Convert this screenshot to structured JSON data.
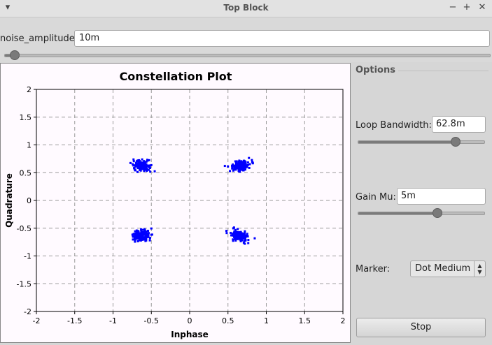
{
  "window": {
    "title": "Top Block",
    "menu_icon": "chevron-down-icon",
    "controls": [
      "minimize-icon",
      "maximize-icon",
      "close-icon"
    ]
  },
  "noise": {
    "label": "noise_amplitude:",
    "value": "10m",
    "slider_fraction": 0.02
  },
  "plot": {
    "title": "Constellation Plot",
    "xlabel": "Inphase",
    "ylabel": "Quadrature"
  },
  "options": {
    "title": "Options",
    "loop_bandwidth": {
      "label": "Loop Bandwidth:",
      "value": "62.8m",
      "slider_fraction": 0.77
    },
    "gain_mu": {
      "label": "Gain Mu:",
      "value": "5m",
      "slider_fraction": 0.63
    },
    "marker": {
      "label": "Marker:",
      "value": "Dot Medium"
    },
    "stop_label": "Stop"
  },
  "chart_data": {
    "type": "scatter",
    "title": "Constellation Plot",
    "xlabel": "Inphase",
    "ylabel": "Quadrature",
    "xlim": [
      -2,
      2
    ],
    "ylim": [
      -2,
      2
    ],
    "xticks": [
      "-2",
      "-1.5",
      "-1",
      "-0.5",
      "0",
      "0.5",
      "1",
      "1.5",
      "2"
    ],
    "yticks": [
      "2",
      "1.5",
      "1",
      "0.5",
      "0",
      "-0.5",
      "-1",
      "-1.5",
      "-2"
    ],
    "grid": true,
    "marker_color": "#0000ff",
    "clusters": [
      {
        "x": -0.63,
        "y": 0.63
      },
      {
        "x": 0.65,
        "y": 0.62
      },
      {
        "x": -0.63,
        "y": -0.63
      },
      {
        "x": 0.65,
        "y": -0.63
      }
    ]
  }
}
